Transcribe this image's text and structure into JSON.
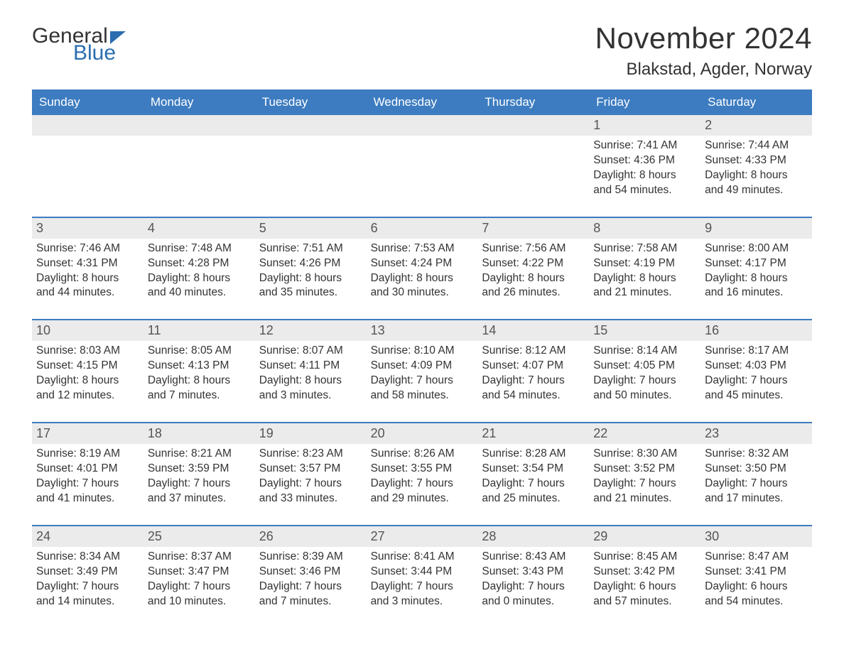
{
  "logo": {
    "word1": "General",
    "word2": "Blue"
  },
  "title": "November 2024",
  "location": "Blakstad, Agder, Norway",
  "colors": {
    "header_bg": "#3d7cc0",
    "header_text": "#ffffff",
    "row_divider": "#3d7cc0",
    "daynum_bg": "#ebebeb",
    "text": "#333333",
    "logo_accent": "#2a6db0",
    "background": "#ffffff"
  },
  "typography": {
    "title_fontsize": 42,
    "location_fontsize": 24,
    "dow_fontsize": 17,
    "daynum_fontsize": 18,
    "body_fontsize": 15.5,
    "font_family": "Arial"
  },
  "layout": {
    "columns": 7,
    "rows": 5,
    "week_start": "Sunday"
  },
  "days_of_week": [
    "Sunday",
    "Monday",
    "Tuesday",
    "Wednesday",
    "Thursday",
    "Friday",
    "Saturday"
  ],
  "weeks": [
    [
      {
        "empty": true
      },
      {
        "empty": true
      },
      {
        "empty": true
      },
      {
        "empty": true
      },
      {
        "empty": true
      },
      {
        "day": 1,
        "sunrise": "7:41 AM",
        "sunset": "4:36 PM",
        "daylight_h": 8,
        "daylight_m": 54
      },
      {
        "day": 2,
        "sunrise": "7:44 AM",
        "sunset": "4:33 PM",
        "daylight_h": 8,
        "daylight_m": 49
      }
    ],
    [
      {
        "day": 3,
        "sunrise": "7:46 AM",
        "sunset": "4:31 PM",
        "daylight_h": 8,
        "daylight_m": 44
      },
      {
        "day": 4,
        "sunrise": "7:48 AM",
        "sunset": "4:28 PM",
        "daylight_h": 8,
        "daylight_m": 40
      },
      {
        "day": 5,
        "sunrise": "7:51 AM",
        "sunset": "4:26 PM",
        "daylight_h": 8,
        "daylight_m": 35
      },
      {
        "day": 6,
        "sunrise": "7:53 AM",
        "sunset": "4:24 PM",
        "daylight_h": 8,
        "daylight_m": 30
      },
      {
        "day": 7,
        "sunrise": "7:56 AM",
        "sunset": "4:22 PM",
        "daylight_h": 8,
        "daylight_m": 26
      },
      {
        "day": 8,
        "sunrise": "7:58 AM",
        "sunset": "4:19 PM",
        "daylight_h": 8,
        "daylight_m": 21
      },
      {
        "day": 9,
        "sunrise": "8:00 AM",
        "sunset": "4:17 PM",
        "daylight_h": 8,
        "daylight_m": 16
      }
    ],
    [
      {
        "day": 10,
        "sunrise": "8:03 AM",
        "sunset": "4:15 PM",
        "daylight_h": 8,
        "daylight_m": 12
      },
      {
        "day": 11,
        "sunrise": "8:05 AM",
        "sunset": "4:13 PM",
        "daylight_h": 8,
        "daylight_m": 7
      },
      {
        "day": 12,
        "sunrise": "8:07 AM",
        "sunset": "4:11 PM",
        "daylight_h": 8,
        "daylight_m": 3
      },
      {
        "day": 13,
        "sunrise": "8:10 AM",
        "sunset": "4:09 PM",
        "daylight_h": 7,
        "daylight_m": 58
      },
      {
        "day": 14,
        "sunrise": "8:12 AM",
        "sunset": "4:07 PM",
        "daylight_h": 7,
        "daylight_m": 54
      },
      {
        "day": 15,
        "sunrise": "8:14 AM",
        "sunset": "4:05 PM",
        "daylight_h": 7,
        "daylight_m": 50
      },
      {
        "day": 16,
        "sunrise": "8:17 AM",
        "sunset": "4:03 PM",
        "daylight_h": 7,
        "daylight_m": 45
      }
    ],
    [
      {
        "day": 17,
        "sunrise": "8:19 AM",
        "sunset": "4:01 PM",
        "daylight_h": 7,
        "daylight_m": 41
      },
      {
        "day": 18,
        "sunrise": "8:21 AM",
        "sunset": "3:59 PM",
        "daylight_h": 7,
        "daylight_m": 37
      },
      {
        "day": 19,
        "sunrise": "8:23 AM",
        "sunset": "3:57 PM",
        "daylight_h": 7,
        "daylight_m": 33
      },
      {
        "day": 20,
        "sunrise": "8:26 AM",
        "sunset": "3:55 PM",
        "daylight_h": 7,
        "daylight_m": 29
      },
      {
        "day": 21,
        "sunrise": "8:28 AM",
        "sunset": "3:54 PM",
        "daylight_h": 7,
        "daylight_m": 25
      },
      {
        "day": 22,
        "sunrise": "8:30 AM",
        "sunset": "3:52 PM",
        "daylight_h": 7,
        "daylight_m": 21
      },
      {
        "day": 23,
        "sunrise": "8:32 AM",
        "sunset": "3:50 PM",
        "daylight_h": 7,
        "daylight_m": 17
      }
    ],
    [
      {
        "day": 24,
        "sunrise": "8:34 AM",
        "sunset": "3:49 PM",
        "daylight_h": 7,
        "daylight_m": 14
      },
      {
        "day": 25,
        "sunrise": "8:37 AM",
        "sunset": "3:47 PM",
        "daylight_h": 7,
        "daylight_m": 10
      },
      {
        "day": 26,
        "sunrise": "8:39 AM",
        "sunset": "3:46 PM",
        "daylight_h": 7,
        "daylight_m": 7
      },
      {
        "day": 27,
        "sunrise": "8:41 AM",
        "sunset": "3:44 PM",
        "daylight_h": 7,
        "daylight_m": 3
      },
      {
        "day": 28,
        "sunrise": "8:43 AM",
        "sunset": "3:43 PM",
        "daylight_h": 7,
        "daylight_m": 0
      },
      {
        "day": 29,
        "sunrise": "8:45 AM",
        "sunset": "3:42 PM",
        "daylight_h": 6,
        "daylight_m": 57
      },
      {
        "day": 30,
        "sunrise": "8:47 AM",
        "sunset": "3:41 PM",
        "daylight_h": 6,
        "daylight_m": 54
      }
    ]
  ],
  "labels": {
    "sunrise_prefix": "Sunrise: ",
    "sunset_prefix": "Sunset: ",
    "daylight_prefix": "Daylight: ",
    "hours_word": " hours",
    "and_word": "and ",
    "minutes_word": " minutes."
  }
}
